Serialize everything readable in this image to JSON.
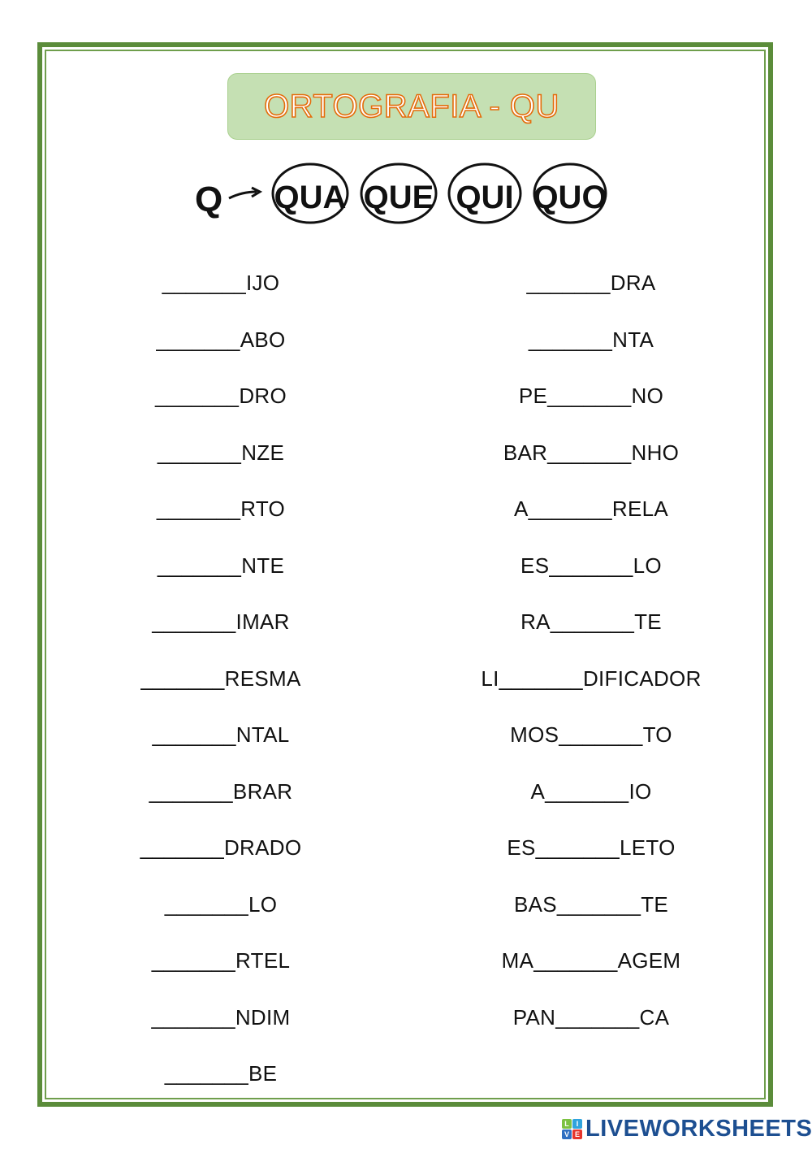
{
  "title": "ORTOGRAFIA - QU",
  "syllables": {
    "letter": "Q",
    "items": [
      "QUA",
      "QUE",
      "QUI",
      "QUO"
    ]
  },
  "left_items": [
    "_______IJO",
    "_______ABO",
    "_______DRO",
    "_______NZE",
    "_______RTO",
    "_______NTE",
    "_______IMAR",
    "_______RESMA",
    "_______NTAL",
    "_______BRAR",
    "_______DRADO",
    "_______LO",
    "_______RTEL",
    "_______NDIM",
    "_______BE"
  ],
  "right_items": [
    "_______DRA",
    "_______NTA",
    "PE_______NO",
    "BAR_______NHO",
    "A_______RELA",
    "ES_______LO",
    "RA_______TE",
    "LI_______DIFICADOR",
    "MOS_______TO",
    "A_______IO",
    "ES_______LETO",
    "BAS_______TE",
    "MA_______AGEM",
    "PAN_______CA"
  ],
  "footer": {
    "logo_text": "LIVEWORKSHEETS",
    "logo_letters": [
      "L",
      "I",
      "V",
      "E"
    ]
  },
  "colors": {
    "border": "#5b8c3a",
    "title_box": "#c5e0b3",
    "title_outline": "#e46c0a",
    "logo": "#1d4f91"
  }
}
